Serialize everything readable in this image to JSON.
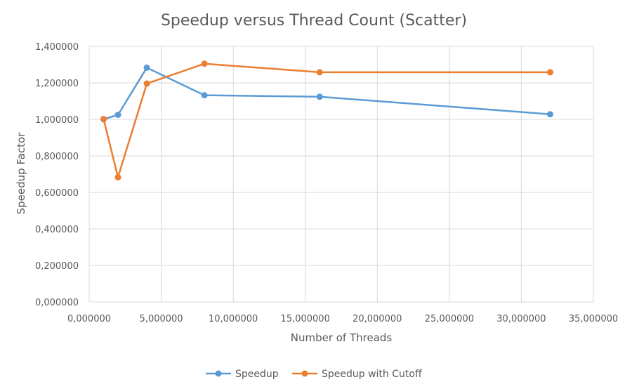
{
  "chart_data": {
    "type": "scatter",
    "title": "Speedup versus Thread Count (Scatter)",
    "xlabel": "Number of Threads",
    "ylabel": "Speedup Factor",
    "xlim": [
      0,
      35
    ],
    "ylim": [
      0,
      1.4
    ],
    "x_ticks": [
      0,
      5,
      10,
      15,
      20,
      25,
      30,
      35
    ],
    "y_ticks": [
      0,
      0.2,
      0.4,
      0.6,
      0.8,
      1.0,
      1.2,
      1.4
    ],
    "x_tick_labels": [
      "0,000000",
      "5,000000",
      "10,000000",
      "15,000000",
      "20,000000",
      "25,000000",
      "30,000000",
      "35,000000"
    ],
    "y_tick_labels": [
      "0,000000",
      "0,200000",
      "0,400000",
      "0,600000",
      "0,800000",
      "1,000000",
      "1,200000",
      "1,400000"
    ],
    "grid": true,
    "legend_position": "bottom",
    "series": [
      {
        "name": "Speedup",
        "color": "#5b9bd5",
        "x": [
          1,
          2,
          4,
          8,
          16,
          32
        ],
        "y": [
          1.0,
          1.025,
          1.283,
          1.132,
          1.124,
          1.028
        ]
      },
      {
        "name": "Speedup with Cutoff",
        "color": "#ed7d31",
        "x": [
          1,
          2,
          4,
          8,
          16,
          32
        ],
        "y": [
          1.002,
          0.683,
          1.196,
          1.305,
          1.258,
          1.258
        ]
      }
    ]
  }
}
